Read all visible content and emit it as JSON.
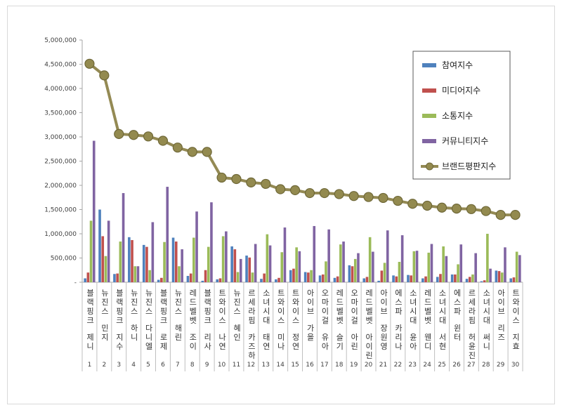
{
  "chart_data": {
    "type": "bar",
    "title": "",
    "xlabel": "",
    "ylabel": "",
    "ylim": [
      0,
      5000000
    ],
    "yticks": [
      "-",
      "500,000",
      "1,000,000",
      "1,500,000",
      "2,000,000",
      "2,500,000",
      "3,000,000",
      "3,500,000",
      "4,000,000",
      "4,500,000",
      "5,000,000"
    ],
    "grid": false,
    "legend_position": "top-right",
    "categories": [
      "블랙핑크 제니",
      "뉴진스 민지",
      "블랙핑크 지수",
      "뉴진스 하니",
      "뉴진스 다니엘",
      "블랙핑크 로제",
      "뉴진스 해린",
      "레드벨벳 조이",
      "블랙핑크 리사",
      "트와이스 나연",
      "뉴진스 혜인",
      "르세라핌 카즈하",
      "소녀시대 태연",
      "트와이스 미나",
      "트와이스 정연",
      "아이브 가을",
      "오마이걸 유아",
      "레드벨벳 슬기",
      "오마이걸 아린",
      "레드벨벳 아이린",
      "아이브 장원영",
      "에스파 카리나",
      "소녀시대 윤아",
      "레드벨벳 웬디",
      "소녀시대 서현",
      "에스파 윈터",
      "르세라핌 허윤진",
      "소녀시대 써니",
      "아이브 리즈",
      "트와이스 지효"
    ],
    "ranks": [
      "1",
      "2",
      "3",
      "4",
      "5",
      "6",
      "7",
      "8",
      "9",
      "10",
      "11",
      "12",
      "13",
      "14",
      "15",
      "16",
      "17",
      "18",
      "19",
      "20",
      "21",
      "22",
      "23",
      "24",
      "25",
      "26",
      "27",
      "28",
      "29",
      "30"
    ],
    "series": [
      {
        "name": "참여지수",
        "kind": "bar",
        "color": "#4f81bd",
        "values": [
          80000,
          1500000,
          170000,
          930000,
          770000,
          50000,
          920000,
          130000,
          30000,
          60000,
          740000,
          550000,
          70000,
          60000,
          250000,
          210000,
          140000,
          90000,
          350000,
          80000,
          30000,
          140000,
          150000,
          80000,
          110000,
          160000,
          70000,
          20000,
          240000,
          80000
        ]
      },
      {
        "name": "미디어지수",
        "kind": "bar",
        "color": "#c0504d",
        "values": [
          200000,
          950000,
          180000,
          870000,
          730000,
          90000,
          840000,
          180000,
          250000,
          80000,
          680000,
          510000,
          180000,
          90000,
          280000,
          200000,
          160000,
          120000,
          330000,
          110000,
          240000,
          120000,
          140000,
          120000,
          170000,
          160000,
          110000,
          40000,
          230000,
          100000
        ]
      },
      {
        "name": "소통지수",
        "kind": "bar",
        "color": "#9bbb59",
        "values": [
          1270000,
          540000,
          840000,
          330000,
          250000,
          830000,
          330000,
          920000,
          730000,
          950000,
          210000,
          200000,
          990000,
          620000,
          720000,
          250000,
          430000,
          780000,
          480000,
          930000,
          400000,
          420000,
          640000,
          610000,
          740000,
          370000,
          160000,
          1000000,
          200000,
          630000
        ]
      },
      {
        "name": "커뮤니티지수",
        "kind": "bar",
        "color": "#8064a2",
        "values": [
          2920000,
          1270000,
          1840000,
          330000,
          1240000,
          1970000,
          680000,
          1460000,
          1650000,
          1050000,
          480000,
          790000,
          760000,
          1130000,
          640000,
          1160000,
          1090000,
          840000,
          600000,
          630000,
          1070000,
          970000,
          650000,
          790000,
          540000,
          780000,
          600000,
          280000,
          720000,
          560000
        ]
      },
      {
        "name": "브랜드평판지수",
        "kind": "line",
        "color": "#948a54",
        "values": [
          4510000,
          4270000,
          3060000,
          3040000,
          3010000,
          2920000,
          2780000,
          2690000,
          2690000,
          2160000,
          2130000,
          2060000,
          2030000,
          1920000,
          1900000,
          1840000,
          1840000,
          1820000,
          1780000,
          1760000,
          1740000,
          1680000,
          1620000,
          1580000,
          1540000,
          1520000,
          1510000,
          1470000,
          1390000,
          1390000
        ]
      }
    ]
  }
}
